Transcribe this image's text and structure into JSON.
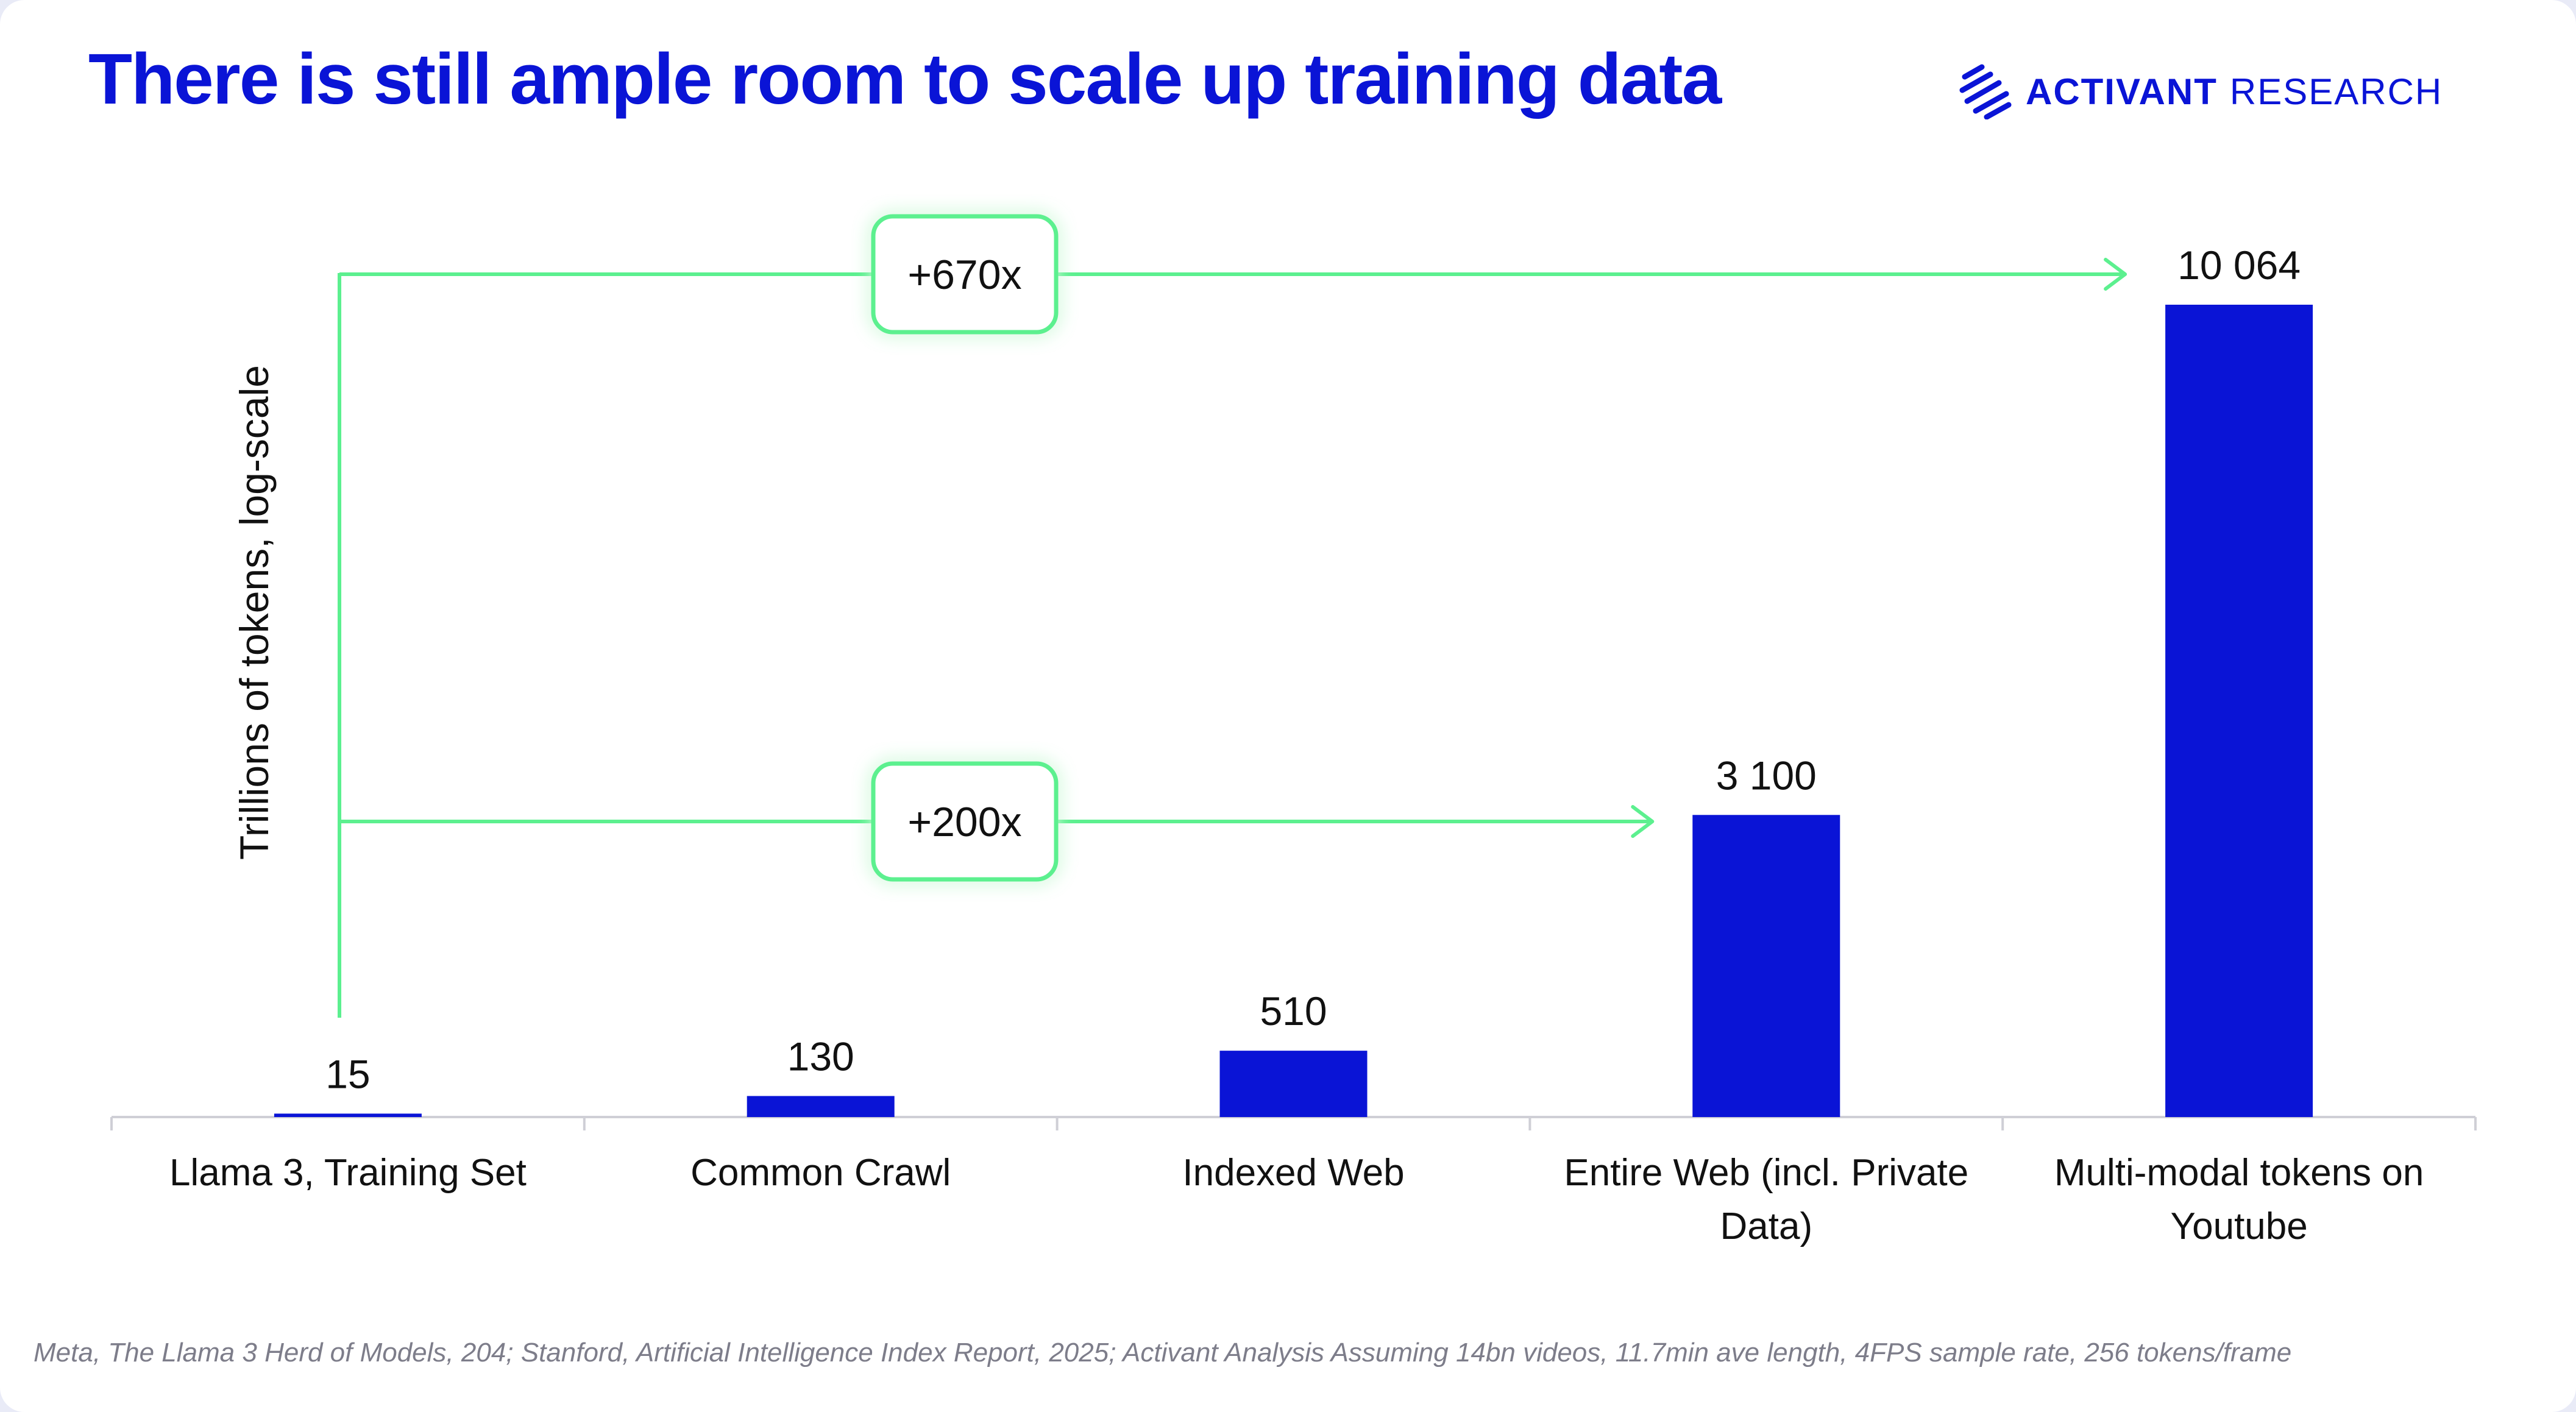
{
  "title": "There is still ample room to scale up training data",
  "logo": {
    "brand": "ACTIVANT",
    "brand2": "RESEARCH",
    "icon": "activant-stripes-icon"
  },
  "source": "Meta, The Llama 3 Herd of Models, 204; Stanford, Artificial Intelligence Index Report, 2025; Activant Analysis Assuming 14bn videos, 11.7min ave length, 4FPS sample rate, 256 tokens/frame",
  "chart_data": {
    "type": "bar",
    "ylabel": "Trillions of tokens, log-scale",
    "yscale": "log",
    "grid": false,
    "legend": "none",
    "categories": [
      [
        "Llama 3, Training Set"
      ],
      [
        "Common Crawl"
      ],
      [
        "Indexed Web"
      ],
      [
        "Entire Web (incl. Private",
        "Data)"
      ],
      [
        "Multi-modal tokens on",
        "Youtube"
      ]
    ],
    "values": [
      15,
      130,
      510,
      3100,
      10064
    ],
    "data_labels": [
      "15",
      "130",
      "510",
      "3 100",
      "10 064"
    ],
    "annotations": [
      {
        "label": "+670x",
        "from": 0,
        "to": 4
      },
      {
        "label": "+200x",
        "from": 0,
        "to": 3
      }
    ],
    "colors": {
      "bar": "#0a14d6",
      "annotation": "#5cf08f",
      "text": "#111111",
      "title": "#0a14d6"
    }
  }
}
